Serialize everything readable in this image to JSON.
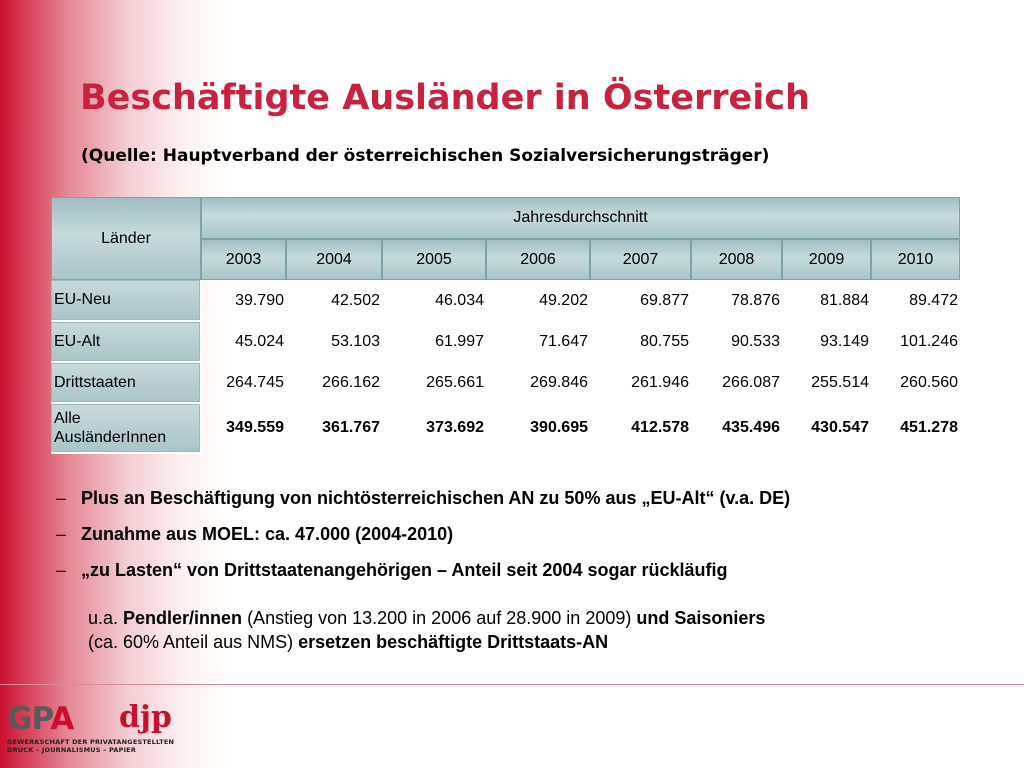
{
  "slide": {
    "title": "Beschäftigte Ausländer in Österreich",
    "source": "(Quelle: Hauptverband der österreichischen Sozialversicherungsträger)"
  },
  "table": {
    "header_countries": "Länder",
    "header_avg": "Jahresdurchschnitt",
    "years": [
      "2003",
      "2004",
      "2005",
      "2006",
      "2007",
      "2008",
      "2009",
      "2010"
    ],
    "rows": [
      {
        "label": "EU-Neu",
        "values": [
          "39.790",
          "42.502",
          "46.034",
          "49.202",
          "69.877",
          "78.876",
          "81.884",
          "89.472"
        ]
      },
      {
        "label": "EU-Alt",
        "values": [
          "45.024",
          "53.103",
          "61.997",
          "71.647",
          "80.755",
          "90.533",
          "93.149",
          "101.246"
        ]
      },
      {
        "label": "Drittstaaten",
        "values": [
          "264.745",
          "266.162",
          "265.661",
          "269.846",
          "261.946",
          "266.087",
          "255.514",
          "260.560"
        ]
      },
      {
        "label_line1": "Alle",
        "label_line2": "AusländerInnen",
        "values": [
          "349.559",
          "361.767",
          "373.692",
          "390.695",
          "412.578",
          "435.496",
          "430.547",
          "451.278"
        ]
      }
    ]
  },
  "bullets": {
    "dash": "–",
    "b1": "Plus an Beschäftigung von nichtösterreichischen AN zu 50% aus „EU-Alt“ (v.a. DE)",
    "b2": "Zunahme aus MOEL: ca. 47.000 (2004-2010)",
    "b3": "„zu Lasten“ von Drittstaatenangehörigen – Anteil seit 2004 sogar rückläufig"
  },
  "paragraph": {
    "p1": "u.a. ",
    "p2": "Pendler/innen",
    "p3": " (Anstieg von 13.200 in 2006 auf 28.900  in 2009) ",
    "p4": "und Saisoniers",
    "p5": "(ca. 60% Anteil aus NMS) ",
    "p6": "ersetzen beschäftigte Drittstaats-AN"
  },
  "logo": {
    "gp": "GP",
    "a": "A",
    "djp": "djp",
    "sub1": "GEWERKSCHAFT DER PRIVATANGESTELLTEN",
    "sub2": "DRUCK – JOURNALISMUS – PAPIER"
  },
  "colors": {
    "accent": "#c8102e",
    "title": "#c8223f",
    "table_header": "#b3cccf"
  }
}
